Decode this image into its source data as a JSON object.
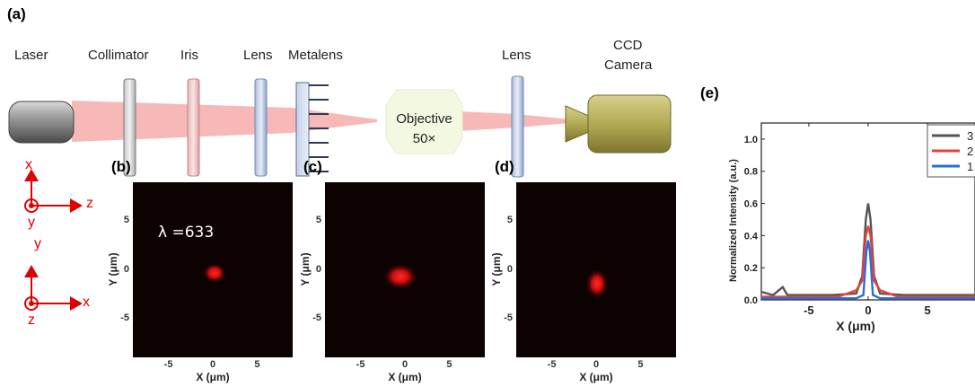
{
  "panel_labels": {
    "a": "(a)",
    "b": "(b)",
    "c": "(c)",
    "d": "(d)",
    "e": "(e)"
  },
  "setup": {
    "laser": "Laser",
    "collimator": "Collimator",
    "iris": "Iris",
    "lens1": "Lens",
    "metalens": "Metalens",
    "objective_line1": "Objective",
    "objective_line2": "50×",
    "lens2": "Lens",
    "ccd_line1": "CCD",
    "ccd_line2": "Camera"
  },
  "coord_axes": {
    "top": {
      "vertical": "x",
      "horizontal": "z",
      "origin": "y"
    },
    "bottom": {
      "vertical": "y",
      "horizontal": "x",
      "origin": "z"
    }
  },
  "colors": {
    "beam": "#f7b8b8",
    "axis_red": "#e00000",
    "map_bg": "#0c0202",
    "focal_spot": "#ff1a1a"
  },
  "focal_maps": {
    "wavelength_label": "λ =633",
    "xlabel": "X (μm)",
    "ylabel": "Y (μm)",
    "ticks": [
      "-5",
      "0",
      "5"
    ]
  },
  "chart_data": {
    "type": "line",
    "xlabel": "X (μm)",
    "ylabel": "Normalized Intensity (a.u.)",
    "xlim": [
      -9,
      9
    ],
    "ylim": [
      0,
      1.1
    ],
    "x_ticks": [
      "-5",
      "0",
      "5"
    ],
    "y_ticks": [
      "0.0",
      "0.2",
      "0.4",
      "0.6",
      "0.8",
      "1.0"
    ],
    "legend_position": "top-right",
    "series": [
      {
        "name": "3",
        "color": "#555555",
        "x": [
          -9,
          -8,
          -7.2,
          -6.8,
          -6.4,
          -5,
          -3,
          -1,
          -0.5,
          -0.2,
          0,
          0.2,
          0.5,
          1,
          3,
          5,
          9
        ],
        "y": [
          0.05,
          0.03,
          0.08,
          0.03,
          0.03,
          0.03,
          0.03,
          0.04,
          0.15,
          0.5,
          0.6,
          0.5,
          0.15,
          0.04,
          0.03,
          0.03,
          0.03
        ]
      },
      {
        "name": "2",
        "color": "#e84040",
        "x": [
          -9,
          -5,
          -2.5,
          -1,
          -0.5,
          -0.2,
          0,
          0.2,
          0.5,
          1,
          2.5,
          9
        ],
        "y": [
          0.02,
          0.02,
          0.02,
          0.06,
          0.12,
          0.4,
          0.46,
          0.4,
          0.12,
          0.06,
          0.02,
          0.02
        ]
      },
      {
        "name": "1",
        "color": "#2a6dd8",
        "x": [
          -9,
          -5,
          -1,
          -0.4,
          -0.15,
          0,
          0.15,
          0.4,
          1,
          9
        ],
        "y": [
          0.01,
          0.01,
          0.01,
          0.03,
          0.3,
          0.37,
          0.3,
          0.03,
          0.01,
          0.01
        ]
      }
    ]
  }
}
